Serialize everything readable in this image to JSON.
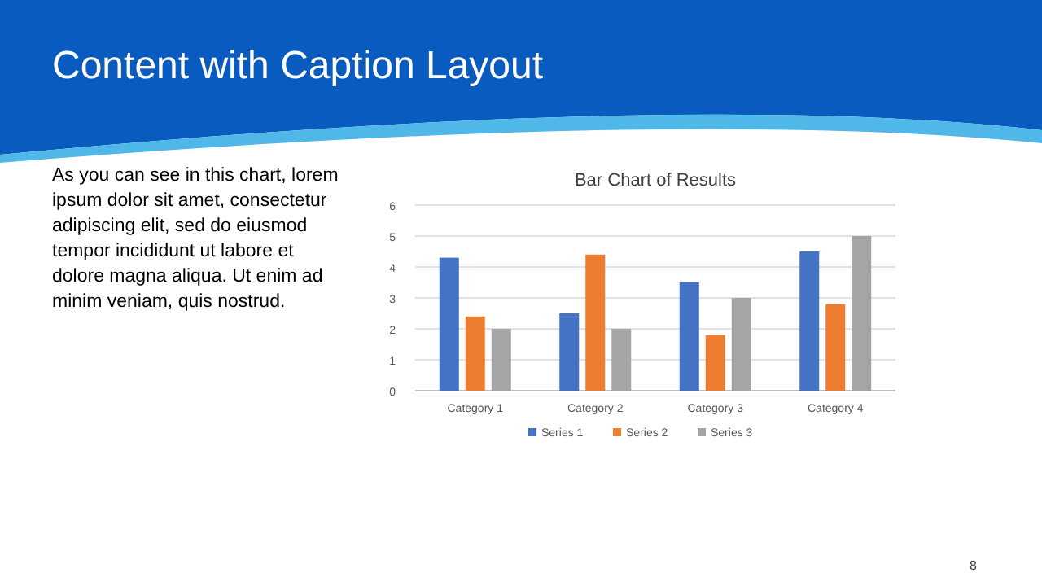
{
  "chart_data": {
    "type": "bar",
    "title": "Bar Chart of Results",
    "categories": [
      "Category 1",
      "Category 2",
      "Category 3",
      "Category 4"
    ],
    "series": [
      {
        "name": "Series 1",
        "color": "#4472c4",
        "values": [
          4.3,
          2.5,
          3.5,
          4.5
        ]
      },
      {
        "name": "Series 2",
        "color": "#ed7d31",
        "values": [
          2.4,
          4.4,
          1.8,
          2.8
        ]
      },
      {
        "name": "Series 3",
        "color": "#a5a5a5",
        "values": [
          2,
          2,
          3,
          5
        ]
      }
    ],
    "ylim": [
      0,
      6
    ],
    "yticks": [
      0,
      1,
      2,
      3,
      4,
      5,
      6
    ],
    "grid": "y",
    "legend": "bottom",
    "annotations": [
      "Content with Caption Layout",
      "As you can see in this chart, lorem ipsum dolor sit amet, consectetur adipiscing elit, sed do eiusmod tempor incididunt ut labore et dolore magna aliqua. Ut enim ad minim veniam, quis nostrud.",
      "8"
    ]
  }
}
